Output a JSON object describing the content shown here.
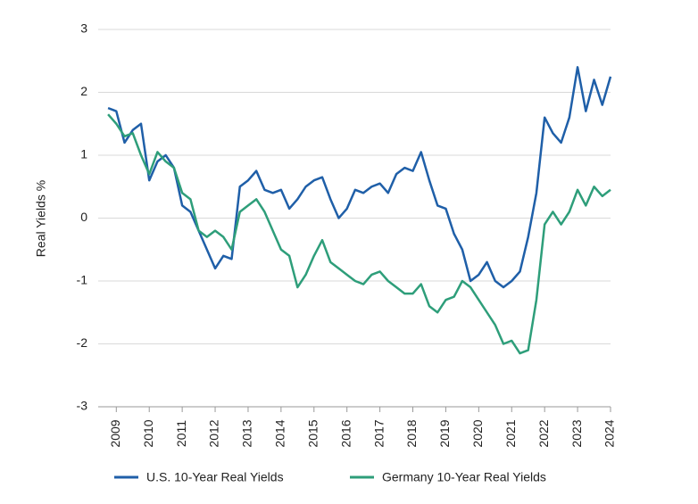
{
  "chart_data": {
    "type": "line",
    "ylabel": "Real Yields %",
    "x": [
      2008.75,
      2009,
      2009.25,
      2009.5,
      2009.75,
      2010,
      2010.25,
      2010.5,
      2010.75,
      2011,
      2011.25,
      2011.5,
      2011.75,
      2012,
      2012.25,
      2012.5,
      2012.75,
      2013,
      2013.25,
      2013.5,
      2013.75,
      2014,
      2014.25,
      2014.5,
      2014.75,
      2015,
      2015.25,
      2015.5,
      2015.75,
      2016,
      2016.25,
      2016.5,
      2016.75,
      2017,
      2017.25,
      2017.5,
      2017.75,
      2018,
      2018.25,
      2018.5,
      2018.75,
      2019,
      2019.25,
      2019.5,
      2019.75,
      2020,
      2020.25,
      2020.5,
      2020.75,
      2021,
      2021.25,
      2021.5,
      2021.75,
      2022,
      2022.25,
      2022.5,
      2022.75,
      2023,
      2023.25,
      2023.5,
      2023.75,
      2024
    ],
    "series": [
      {
        "name": "U.S. 10-Year Real Yields",
        "color": "#1f5fa8",
        "values": [
          1.75,
          1.7,
          1.2,
          1.4,
          1.5,
          0.6,
          0.9,
          1.0,
          0.8,
          0.2,
          0.1,
          -0.2,
          -0.5,
          -0.8,
          -0.6,
          -0.65,
          0.5,
          0.6,
          0.75,
          0.45,
          0.4,
          0.45,
          0.15,
          0.3,
          0.5,
          0.6,
          0.65,
          0.3,
          0.0,
          0.15,
          0.45,
          0.4,
          0.5,
          0.55,
          0.4,
          0.7,
          0.8,
          0.75,
          1.05,
          0.6,
          0.2,
          0.15,
          -0.25,
          -0.5,
          -1.0,
          -0.9,
          -0.7,
          -1.0,
          -1.1,
          -1.0,
          -0.85,
          -0.3,
          0.4,
          1.6,
          1.35,
          1.2,
          1.6,
          2.4,
          1.7,
          2.2,
          1.8,
          2.25
        ]
      },
      {
        "name": "Germany 10-Year Real Yields",
        "color": "#2e9e7a",
        "values": [
          1.65,
          1.5,
          1.3,
          1.35,
          1.0,
          0.7,
          1.05,
          0.9,
          0.8,
          0.4,
          0.3,
          -0.2,
          -0.3,
          -0.2,
          -0.3,
          -0.5,
          0.1,
          0.2,
          0.3,
          0.1,
          -0.2,
          -0.5,
          -0.6,
          -1.1,
          -0.9,
          -0.6,
          -0.35,
          -0.7,
          -0.8,
          -0.9,
          -1.0,
          -1.05,
          -0.9,
          -0.85,
          -1.0,
          -1.1,
          -1.2,
          -1.2,
          -1.05,
          -1.4,
          -1.5,
          -1.3,
          -1.25,
          -1.0,
          -1.1,
          -1.3,
          -1.5,
          -1.7,
          -2.0,
          -1.95,
          -2.15,
          -2.1,
          -1.3,
          -0.1,
          0.1,
          -0.1,
          0.1,
          0.45,
          0.2,
          0.5,
          0.35,
          0.45
        ]
      }
    ],
    "xlim": [
      2008.45,
      2024
    ],
    "xticks": [
      2009,
      2010,
      2011,
      2012,
      2013,
      2014,
      2015,
      2016,
      2017,
      2018,
      2019,
      2020,
      2021,
      2022,
      2023,
      2024
    ],
    "ylim": [
      -3,
      3
    ],
    "yticks": [
      -3,
      -2,
      -1,
      0,
      1,
      2,
      3
    ],
    "grid": true
  }
}
